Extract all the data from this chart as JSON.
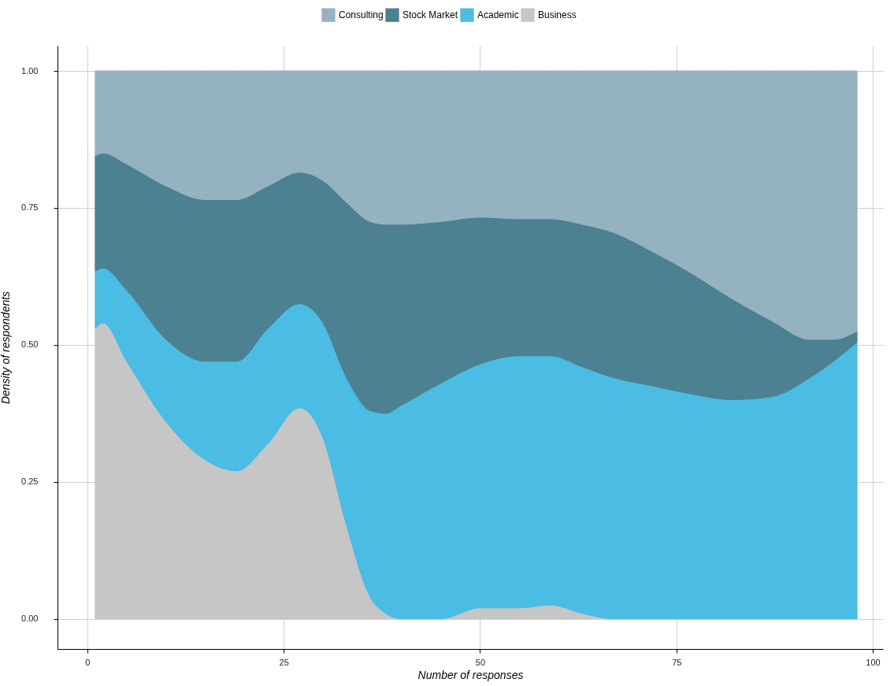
{
  "chart_data": {
    "type": "area",
    "stacked": true,
    "xlabel": "Number of responses",
    "ylabel": "Density of respondents",
    "x": [
      1,
      2,
      5,
      10,
      15,
      19,
      23,
      27,
      30,
      33,
      36,
      38,
      40,
      45,
      50,
      55,
      59,
      63,
      67,
      72,
      77,
      82,
      87,
      92,
      95,
      98
    ],
    "series": [
      {
        "name": "Business",
        "color": "#c6c6c6",
        "values": [
          0.53,
          0.54,
          0.47,
          0.36,
          0.29,
          0.27,
          0.32,
          0.385,
          0.33,
          0.17,
          0.04,
          0.01,
          0,
          0,
          0.02,
          0.02,
          0.025,
          0.01,
          0,
          0,
          0,
          0,
          0,
          0,
          0,
          0
        ]
      },
      {
        "name": "Academic",
        "color": "#4bbce3",
        "values": [
          0.105,
          0.1,
          0.13,
          0.15,
          0.18,
          0.2,
          0.21,
          0.19,
          0.21,
          0.27,
          0.34,
          0.365,
          0.39,
          0.43,
          0.445,
          0.46,
          0.455,
          0.45,
          0.44,
          0.425,
          0.41,
          0.4,
          0.405,
          0.44,
          0.47,
          0.505
        ]
      },
      {
        "name": "Stock Market",
        "color": "#4b8190",
        "values": [
          0.21,
          0.21,
          0.23,
          0.28,
          0.295,
          0.295,
          0.26,
          0.24,
          0.26,
          0.32,
          0.345,
          0.345,
          0.33,
          0.295,
          0.268,
          0.25,
          0.25,
          0.26,
          0.265,
          0.245,
          0.22,
          0.185,
          0.14,
          0.07,
          0.04,
          0.02
        ]
      },
      {
        "name": "Consulting",
        "color": "#94b2bf",
        "values": [
          0.155,
          0.15,
          0.17,
          0.21,
          0.235,
          0.235,
          0.21,
          0.185,
          0.2,
          0.24,
          0.275,
          0.28,
          0.28,
          0.275,
          0.267,
          0.27,
          0.27,
          0.28,
          0.295,
          0.33,
          0.37,
          0.415,
          0.455,
          0.49,
          0.49,
          0.475
        ]
      }
    ],
    "xlim": [
      -3.8,
      101.3
    ],
    "ylim": [
      -0.055,
      1.046
    ],
    "xticks": [
      0,
      25,
      50,
      75,
      100
    ],
    "yticks": [
      {
        "value": 0,
        "label": "0.00"
      },
      {
        "value": 0.25,
        "label": "0.25"
      },
      {
        "value": 0.5,
        "label": "0.50"
      },
      {
        "value": 0.75,
        "label": "0.75"
      },
      {
        "value": 1,
        "label": "1.00"
      }
    ],
    "grid": true,
    "legend": "top"
  }
}
